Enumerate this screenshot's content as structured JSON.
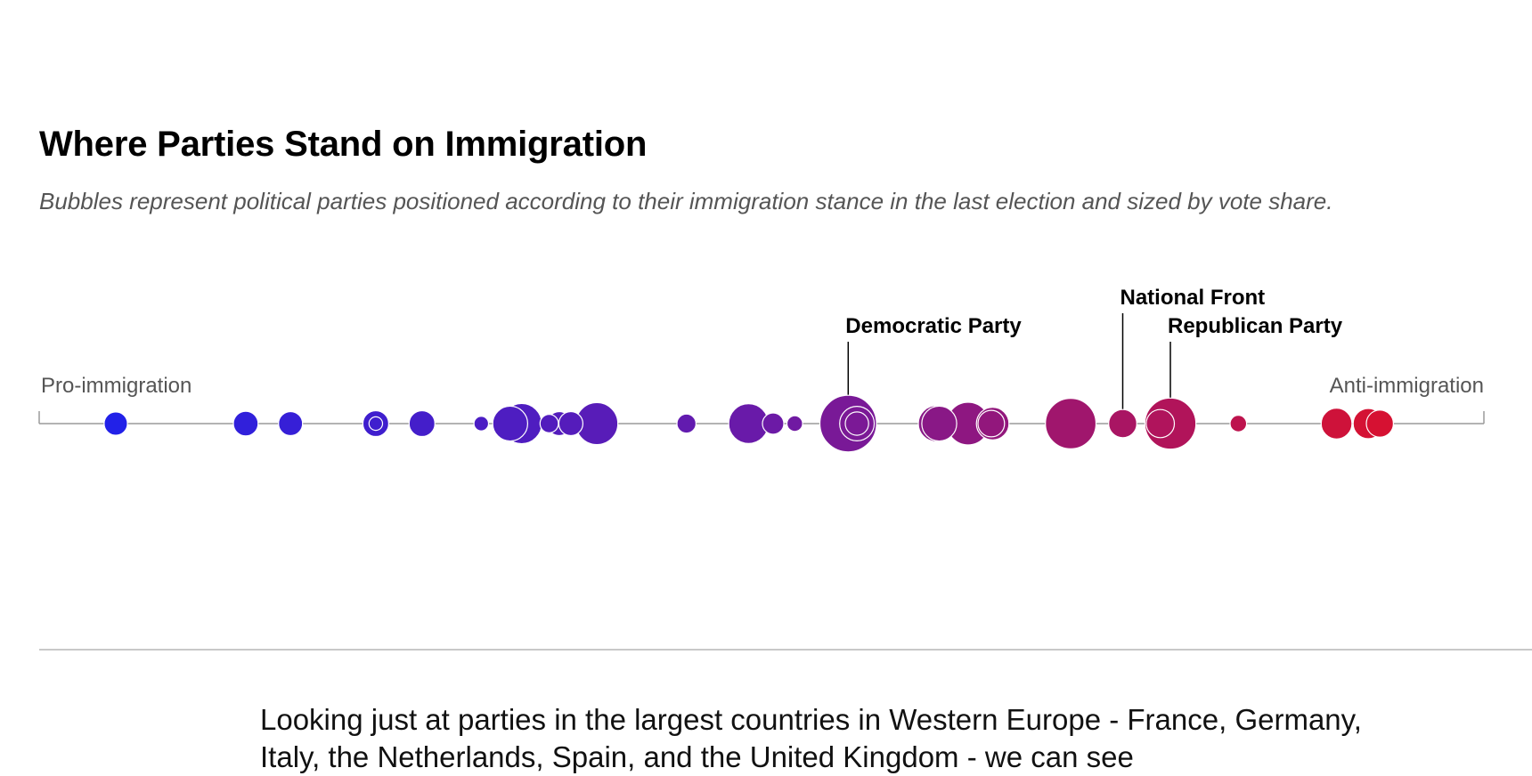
{
  "page": {
    "title": "Where Parties Stand on Immigration",
    "subtitle": "Bubbles represent political parties positioned according to their immigration stance in the last election and sized by vote share.",
    "body_text": "Looking just at parties in the largest countries in Western Europe - France, Germany, Italy, the Netherlands, Spain, and the United Kingdom - we can see"
  },
  "chart_data": {
    "type": "scatter",
    "encoding": "beeswarm",
    "x_min_label": "Pro-immigration",
    "x_max_label": "Anti-immigration",
    "xlim": [
      0,
      100
    ],
    "size_measure": "vote share",
    "color_scale": [
      "#1a22f0",
      "#6a1aa8",
      "#e8101e"
    ],
    "annotations": [
      {
        "label": "Democratic Party",
        "x": 56.0
      },
      {
        "label": "National Front",
        "x": 75.0
      },
      {
        "label": "Republican Party",
        "x": 78.3
      }
    ],
    "points": [
      {
        "x": 5.3,
        "share": 1.8
      },
      {
        "x": 14.3,
        "share": 2.0
      },
      {
        "x": 17.4,
        "share": 1.9
      },
      {
        "x": 23.3,
        "share": 2.2
      },
      {
        "x": 23.3,
        "share": 0.6
      },
      {
        "x": 26.5,
        "share": 2.2
      },
      {
        "x": 30.6,
        "share": 0.7
      },
      {
        "x": 32.6,
        "share": 4.0
      },
      {
        "x": 33.4,
        "share": 5.3
      },
      {
        "x": 35.3,
        "share": 1.1
      },
      {
        "x": 36.0,
        "share": 1.9
      },
      {
        "x": 36.8,
        "share": 1.9
      },
      {
        "x": 38.6,
        "share": 5.8
      },
      {
        "x": 44.8,
        "share": 1.2
      },
      {
        "x": 49.1,
        "share": 5.2
      },
      {
        "x": 50.8,
        "share": 1.5
      },
      {
        "x": 52.3,
        "share": 0.8
      },
      {
        "x": 56.0,
        "share": 10.5
      },
      {
        "x": 56.6,
        "share": 3.9
      },
      {
        "x": 56.6,
        "share": 1.8
      },
      {
        "x": 62.1,
        "share": 4.3
      },
      {
        "x": 62.3,
        "share": 4.0
      },
      {
        "x": 64.3,
        "share": 6.0
      },
      {
        "x": 65.9,
        "share": 2.3
      },
      {
        "x": 66.0,
        "share": 3.5
      },
      {
        "x": 71.4,
        "share": 8.4
      },
      {
        "x": 75.0,
        "share": 2.6
      },
      {
        "x": 78.3,
        "share": 8.6
      },
      {
        "x": 77.6,
        "share": 2.6
      },
      {
        "x": 83.0,
        "share": 0.9
      },
      {
        "x": 89.8,
        "share": 3.1
      },
      {
        "x": 92.0,
        "share": 3.0
      },
      {
        "x": 92.8,
        "share": 2.4
      }
    ]
  }
}
